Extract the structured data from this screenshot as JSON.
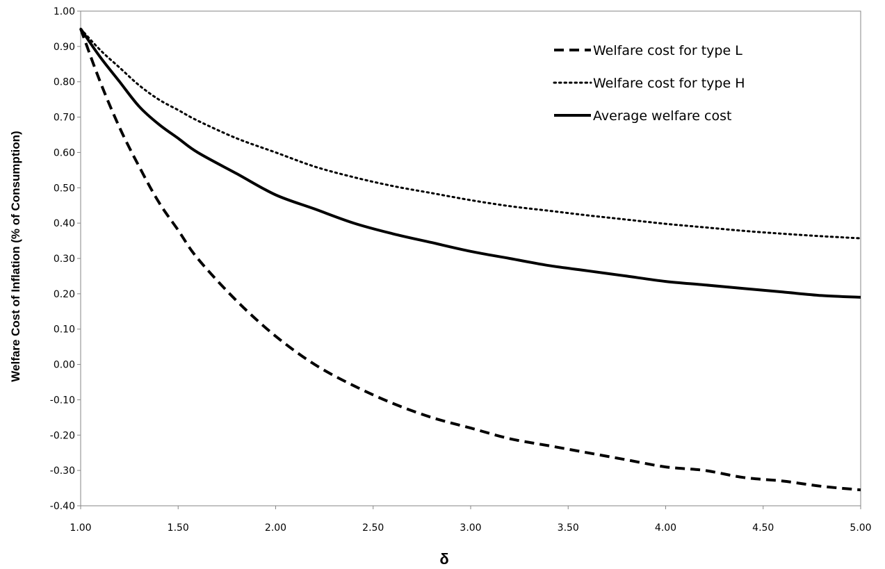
{
  "chart_data": {
    "type": "line",
    "title": "",
    "xlabel": "δ",
    "ylabel": "Welfare Cost of Inflation (% of Consumption)",
    "xlim": [
      1.0,
      5.0
    ],
    "ylim": [
      -0.4,
      1.0
    ],
    "x_ticks": [
      "1.00",
      "1.50",
      "2.00",
      "2.50",
      "3.00",
      "3.50",
      "4.00",
      "4.50",
      "5.00"
    ],
    "y_ticks": [
      "1.00",
      "0.90",
      "0.80",
      "0.70",
      "0.60",
      "0.50",
      "0.40",
      "0.30",
      "0.20",
      "0.10",
      "0.00",
      "-0.10",
      "-0.20",
      "-0.30",
      "-0.40"
    ],
    "grid": false,
    "legend_position": "top-right",
    "x": [
      1.0,
      1.1,
      1.2,
      1.3,
      1.4,
      1.5,
      1.6,
      1.8,
      2.0,
      2.2,
      2.4,
      2.6,
      2.8,
      3.0,
      3.2,
      3.4,
      3.6,
      3.8,
      4.0,
      4.2,
      4.4,
      4.6,
      4.8,
      5.0
    ],
    "series": [
      {
        "name": "Welfare cost for type L",
        "style": "dashed",
        "values": [
          0.95,
          0.8,
          0.67,
          0.56,
          0.46,
          0.38,
          0.3,
          0.18,
          0.08,
          0.0,
          -0.06,
          -0.11,
          -0.15,
          -0.18,
          -0.21,
          -0.23,
          -0.25,
          -0.27,
          -0.29,
          -0.3,
          -0.32,
          -0.33,
          -0.345,
          -0.355
        ]
      },
      {
        "name": "Welfare cost for type H",
        "style": "dotted",
        "values": [
          0.95,
          0.89,
          0.84,
          0.79,
          0.75,
          0.72,
          0.69,
          0.64,
          0.6,
          0.56,
          0.53,
          0.505,
          0.485,
          0.465,
          0.448,
          0.435,
          0.422,
          0.41,
          0.398,
          0.388,
          0.378,
          0.37,
          0.363,
          0.357
        ]
      },
      {
        "name": "Average welfare cost",
        "style": "solid",
        "values": [
          0.95,
          0.87,
          0.8,
          0.73,
          0.68,
          0.64,
          0.6,
          0.54,
          0.48,
          0.44,
          0.4,
          0.37,
          0.345,
          0.32,
          0.3,
          0.28,
          0.265,
          0.25,
          0.235,
          0.225,
          0.215,
          0.205,
          0.195,
          0.19
        ]
      }
    ]
  }
}
